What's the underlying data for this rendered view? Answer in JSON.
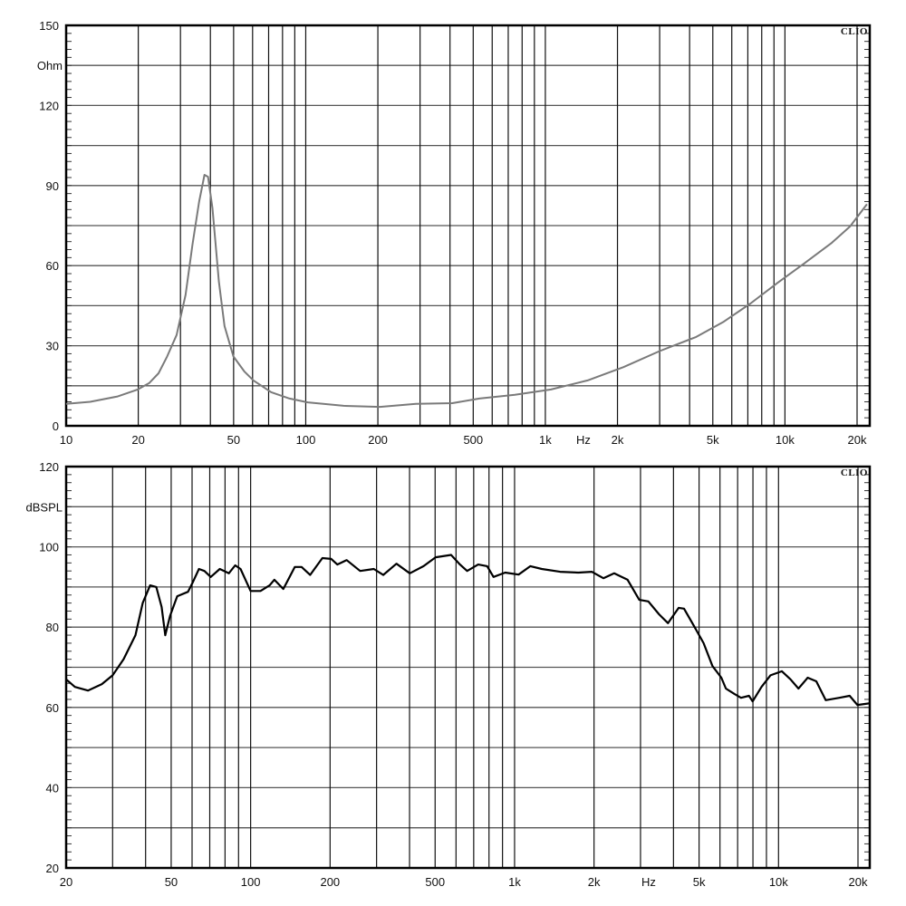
{
  "chart_data": [
    {
      "type": "line",
      "logo": "CLIO",
      "ylabel": "Ohm",
      "xlabel": "Hz",
      "xscale": "log",
      "xlim": [
        10,
        22000
      ],
      "ylim": [
        0,
        150
      ],
      "grid": true,
      "x_tick_labels": [
        "10",
        "20",
        "50",
        "100",
        "200",
        "500",
        "1k",
        "2k",
        "5k",
        "10k",
        "20k"
      ],
      "x_tick_values": [
        10,
        20,
        50,
        100,
        200,
        500,
        1000,
        2000,
        5000,
        10000,
        20000
      ],
      "y_tick_labels": [
        "0",
        "30",
        "60",
        "90",
        "120",
        "150"
      ],
      "y_tick_values": [
        0,
        30,
        60,
        90,
        120,
        150
      ],
      "y_grid_step": 15,
      "line_color": "#7a7a7a",
      "x": [
        10,
        12.6,
        16.4,
        19.9,
        22.2,
        24.3,
        26.4,
        28.9,
        31.5,
        33.7,
        35.9,
        37.8,
        39.1,
        40.8,
        43.4,
        45.8,
        49.9,
        55.4,
        60.5,
        71.8,
        85.6,
        102,
        144,
        204,
        288,
        409,
        530,
        746,
        1055,
        1500,
        2120,
        3000,
        4260,
        5550,
        7180,
        9330,
        12100,
        15700,
        18700,
        22000
      ],
      "y": [
        8.2,
        9,
        11,
        13.6,
        16,
        19.7,
        26,
        34,
        49,
        68,
        84,
        94,
        93.3,
        81.5,
        54,
        37.4,
        26,
        20.4,
        17,
        12.6,
        10.2,
        8.8,
        7.5,
        7.1,
        8.2,
        8.5,
        10.2,
        11.6,
        13.6,
        17,
        22,
        28,
        33.3,
        39,
        45.8,
        53.6,
        61,
        68.6,
        74.7,
        83
      ]
    },
    {
      "type": "line",
      "logo": "CLIO",
      "ylabel": "dBSPL",
      "xlabel": "Hz",
      "xscale": "log",
      "xlim": [
        20,
        22000
      ],
      "ylim": [
        20,
        120
      ],
      "grid": true,
      "x_tick_labels": [
        "20",
        "50",
        "100",
        "200",
        "500",
        "1k",
        "2k",
        "5k",
        "10k",
        "20k"
      ],
      "x_tick_values": [
        20,
        50,
        100,
        200,
        500,
        1000,
        2000,
        5000,
        10000,
        20000
      ],
      "y_tick_labels": [
        "20",
        "40",
        "60",
        "80",
        "100",
        "120"
      ],
      "y_tick_values": [
        20,
        40,
        60,
        80,
        100,
        120
      ],
      "y_grid_step": 10,
      "line_color": "#000000",
      "x": [
        20,
        21.6,
        24.2,
        27.3,
        30,
        33,
        36.6,
        39,
        41.6,
        43.9,
        46,
        47.5,
        49.5,
        52.7,
        57.9,
        60.2,
        63.7,
        66.8,
        70.6,
        76.4,
        82.7,
        87.4,
        91.6,
        100,
        109,
        118,
        123,
        133,
        147,
        156,
        168,
        187,
        202,
        213,
        231,
        260,
        293,
        318,
        357,
        401,
        452,
        502,
        575,
        621,
        661,
        728,
        787,
        832,
        921,
        1036,
        1148,
        1268,
        1487,
        1745,
        1962,
        2171,
        2384,
        2680,
        2968,
        3212,
        3527,
        3812,
        4184,
        4384,
        4811,
        5201,
        5621,
        6075,
        6316,
        6827,
        7210,
        7731,
        7977,
        8621,
        9318,
        10300,
        11100,
        11900,
        12900,
        13900,
        15100,
        17000,
        18600,
        19900,
        22000
      ],
      "y": [
        67,
        65.1,
        64.2,
        65.8,
        68,
        72,
        78,
        86,
        90.4,
        90,
        85,
        78,
        82.8,
        87.7,
        88.8,
        91,
        94.5,
        94,
        92.5,
        94.5,
        93.4,
        95.4,
        94.5,
        89,
        89,
        90.4,
        91.8,
        89.5,
        95,
        95,
        93,
        97.2,
        97,
        95.6,
        96.7,
        94,
        94.5,
        93,
        95.8,
        93.4,
        95.2,
        97.4,
        98,
        95.6,
        94,
        95.6,
        95.2,
        92.5,
        93.6,
        93.1,
        95.2,
        94.5,
        93.8,
        93.6,
        93.8,
        92.2,
        93.4,
        91.8,
        86.8,
        86.4,
        83.2,
        81,
        84.8,
        84.6,
        80,
        76,
        70.3,
        67.4,
        64.7,
        63.3,
        62.4,
        62.9,
        61.5,
        65.1,
        68,
        69,
        67,
        64.7,
        67.4,
        66.5,
        61.8,
        62.4,
        62.9,
        60.6,
        61
      ]
    }
  ]
}
